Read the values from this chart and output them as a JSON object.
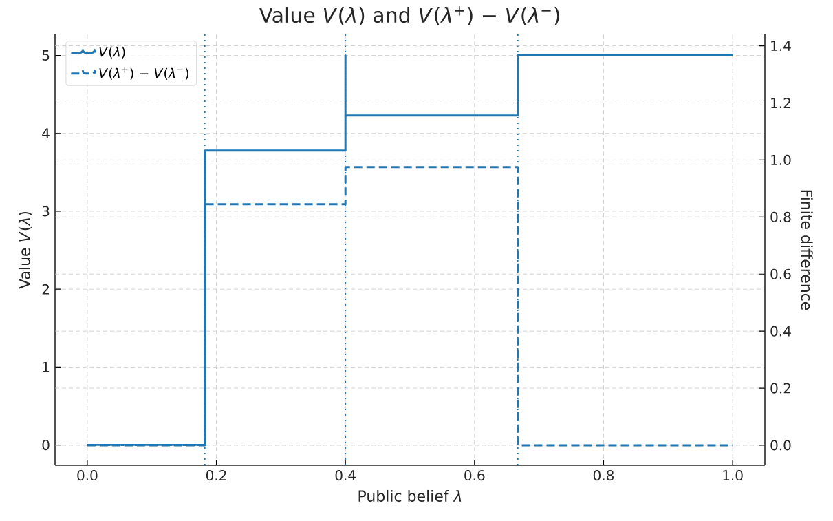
{
  "chart_data": {
    "type": "step",
    "title": "Value *V*(*λ*) and *V*(*λ*$^{+}$) − *V*(*λ*$^{−}$)",
    "xlabel": "Public belief *λ*",
    "ylabel": "Value *V*(*λ*)",
    "y2label": "Finite difference",
    "series": [
      {
        "name": "*V*(*λ*)",
        "color": "#1f77b4",
        "line_style": "solid",
        "x": [
          0,
          0.182,
          0.4,
          0.4,
          0.667,
          1.0
        ],
        "values": [
          0,
          3.78,
          5,
          4.23,
          5,
          5
        ]
      },
      {
        "name": "*V*(*λ*$^{+}$) − *V*(*λ*$^{−}$)",
        "color": "#1f77b4",
        "line_style": "dashed",
        "axis": "y2",
        "x": [
          0,
          0.182,
          0.4,
          0.667,
          1.0
        ],
        "values": [
          0,
          0.845,
          0.975,
          0,
          0
        ]
      }
    ],
    "ref_lines": [
      {
        "axis": "x",
        "value": 0.182,
        "color": "#1f77b4",
        "line_style": "dotted"
      },
      {
        "axis": "x",
        "value": 0.4,
        "color": "#1f77b4",
        "line_style": "dotted"
      },
      {
        "axis": "x",
        "value": 0.667,
        "color": "#1f77b4",
        "line_style": "dotted"
      }
    ],
    "xlim": [
      -0.05,
      1.05
    ],
    "ylim": [
      -0.26,
      5.27
    ],
    "y2lim": [
      -0.07,
      1.44
    ],
    "xticks": [
      {
        "value": 0,
        "label": "0.0"
      },
      {
        "value": 0.2,
        "label": "0.2"
      },
      {
        "value": 0.4,
        "label": "0.4"
      },
      {
        "value": 0.6,
        "label": "0.6"
      },
      {
        "value": 0.8,
        "label": "0.8"
      },
      {
        "value": 1.0,
        "label": "1.0"
      }
    ],
    "yticks": [
      0,
      1,
      2,
      3,
      4,
      5
    ],
    "y2ticks": [
      {
        "value": 0,
        "label": "0.0"
      },
      {
        "value": 0.2,
        "label": "0.2"
      },
      {
        "value": 0.4,
        "label": "0.4"
      },
      {
        "value": 0.6,
        "label": "0.6"
      },
      {
        "value": 0.8,
        "label": "0.8"
      },
      {
        "value": 1.0,
        "label": "1.0"
      },
      {
        "value": 1.2,
        "label": "1.2"
      },
      {
        "value": 1.4,
        "label": "1.4"
      }
    ],
    "grid": true,
    "legend": "top left"
  }
}
